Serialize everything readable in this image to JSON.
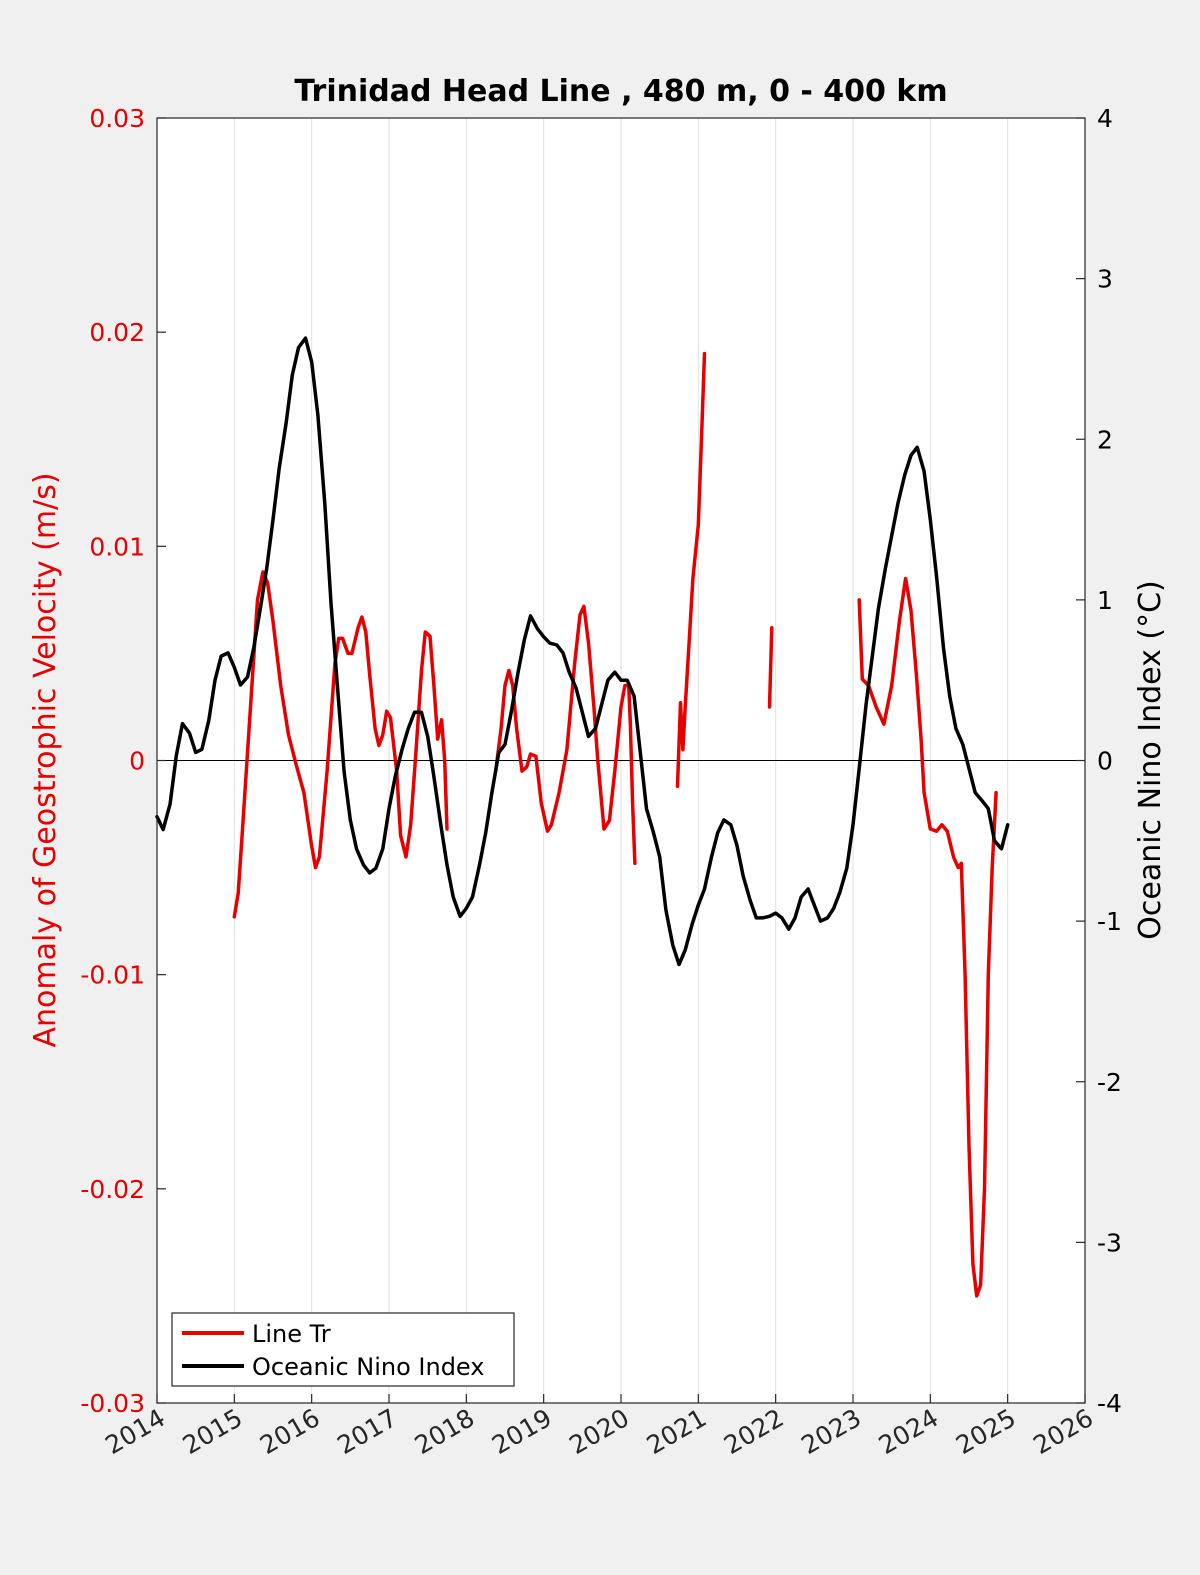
{
  "chart_data": {
    "type": "line",
    "title": "Trinidad Head Line , 480 m, 0 - 400 km",
    "x_axis": {
      "range": [
        2014,
        2026
      ],
      "ticks": [
        "2014",
        "2015",
        "2016",
        "2017",
        "2018",
        "2019",
        "2020",
        "2021",
        "2022",
        "2023",
        "2024",
        "2025",
        "2026"
      ],
      "grid": true
    },
    "y_left": {
      "label": "Anomaly of Geostrophic Velocity (m/s)",
      "range": [
        -0.03,
        0.03
      ],
      "ticks": [
        "-0.03",
        "-0.02",
        "-0.01",
        "0",
        "0.01",
        "0.02",
        "0.03"
      ],
      "color": "#e60000"
    },
    "y_right": {
      "label": "Oceanic Nino Index (°C)",
      "range": [
        -4,
        4
      ],
      "ticks": [
        "-4",
        "-3",
        "-2",
        "-1",
        "0",
        "1",
        "2",
        "3",
        "4"
      ],
      "color": "#000000"
    },
    "zero_line": true,
    "legend": {
      "position": "bottom-left",
      "entries": [
        {
          "label": "Line Tr",
          "color": "#e60000"
        },
        {
          "label": "Oceanic Nino Index",
          "color": "#000000"
        }
      ]
    },
    "series": [
      {
        "name": "Line Tr",
        "axis": "left",
        "color": "#e60000",
        "segments": [
          [
            [
              2015.0,
              -0.0073
            ],
            [
              2015.05,
              -0.0062
            ],
            [
              2015.1,
              -0.0035
            ],
            [
              2015.2,
              0.002
            ],
            [
              2015.3,
              0.0075
            ],
            [
              2015.37,
              0.0088
            ],
            [
              2015.43,
              0.0083
            ],
            [
              2015.5,
              0.0065
            ],
            [
              2015.6,
              0.0035
            ],
            [
              2015.7,
              0.0012
            ],
            [
              2015.8,
              -0.0002
            ],
            [
              2015.9,
              -0.0015
            ],
            [
              2016.0,
              -0.004
            ],
            [
              2016.05,
              -0.005
            ],
            [
              2016.1,
              -0.0045
            ],
            [
              2016.2,
              -0.0005
            ],
            [
              2016.3,
              0.0045
            ],
            [
              2016.35,
              0.0057
            ],
            [
              2016.4,
              0.0057
            ],
            [
              2016.47,
              0.005
            ],
            [
              2016.52,
              0.005
            ],
            [
              2016.6,
              0.0062
            ],
            [
              2016.65,
              0.0067
            ],
            [
              2016.7,
              0.006
            ],
            [
              2016.75,
              0.004
            ],
            [
              2016.82,
              0.0015
            ],
            [
              2016.87,
              0.0007
            ],
            [
              2016.92,
              0.0012
            ],
            [
              2016.97,
              0.0023
            ],
            [
              2017.02,
              0.002
            ],
            [
              2017.1,
              -0.0005
            ],
            [
              2017.15,
              -0.0035
            ],
            [
              2017.22,
              -0.0045
            ],
            [
              2017.28,
              -0.003
            ],
            [
              2017.35,
              0.0005
            ],
            [
              2017.42,
              0.0042
            ],
            [
              2017.47,
              0.006
            ],
            [
              2017.53,
              0.0058
            ],
            [
              2017.58,
              0.0035
            ],
            [
              2017.63,
              0.001
            ],
            [
              2017.68,
              0.0019
            ],
            [
              2017.72,
              0.0
            ],
            [
              2017.75,
              -0.0032
            ]
          ],
          [
            [
              2018.38,
              -0.0005
            ],
            [
              2018.45,
              0.0015
            ],
            [
              2018.5,
              0.0035
            ],
            [
              2018.55,
              0.0042
            ],
            [
              2018.6,
              0.0035
            ],
            [
              2018.65,
              0.0015
            ],
            [
              2018.72,
              -0.0005
            ],
            [
              2018.78,
              -0.0003
            ],
            [
              2018.83,
              0.0003
            ],
            [
              2018.9,
              0.0002
            ],
            [
              2018.97,
              -0.002
            ],
            [
              2019.05,
              -0.0033
            ],
            [
              2019.1,
              -0.003
            ],
            [
              2019.2,
              -0.0015
            ],
            [
              2019.3,
              0.0005
            ],
            [
              2019.4,
              0.0045
            ],
            [
              2019.47,
              0.0068
            ],
            [
              2019.52,
              0.0072
            ],
            [
              2019.58,
              0.0055
            ],
            [
              2019.65,
              0.0025
            ],
            [
              2019.7,
              0.0
            ],
            [
              2019.78,
              -0.0032
            ],
            [
              2019.85,
              -0.0028
            ],
            [
              2019.92,
              -0.0005
            ],
            [
              2020.0,
              0.0025
            ],
            [
              2020.05,
              0.0035
            ],
            [
              2020.1,
              0.0035
            ],
            [
              2020.12,
              0.0018
            ],
            [
              2020.15,
              -0.002
            ],
            [
              2020.18,
              -0.0048
            ]
          ],
          [
            [
              2020.73,
              -0.0012
            ],
            [
              2020.77,
              0.0027
            ],
            [
              2020.8,
              0.0005
            ],
            [
              2020.83,
              0.0025
            ],
            [
              2020.88,
              0.0055
            ],
            [
              2020.93,
              0.0085
            ],
            [
              2021.0,
              0.011
            ],
            [
              2021.03,
              0.014
            ],
            [
              2021.08,
              0.019
            ]
          ],
          [
            [
              2021.92,
              0.0025
            ],
            [
              2021.95,
              0.0062
            ]
          ],
          [
            [
              2023.08,
              0.0075
            ],
            [
              2023.12,
              0.0038
            ],
            [
              2023.2,
              0.0035
            ],
            [
              2023.3,
              0.0025
            ],
            [
              2023.4,
              0.0017
            ],
            [
              2023.5,
              0.0035
            ],
            [
              2023.6,
              0.0065
            ],
            [
              2023.68,
              0.0085
            ],
            [
              2023.75,
              0.007
            ],
            [
              2023.82,
              0.004
            ],
            [
              2023.88,
              0.001
            ],
            [
              2023.92,
              -0.0015
            ],
            [
              2024.0,
              -0.0032
            ],
            [
              2024.08,
              -0.0033
            ],
            [
              2024.15,
              -0.003
            ],
            [
              2024.22,
              -0.0033
            ],
            [
              2024.3,
              -0.0045
            ],
            [
              2024.36,
              -0.005
            ],
            [
              2024.4,
              -0.0048
            ],
            [
              2024.45,
              -0.01
            ],
            [
              2024.5,
              -0.018
            ],
            [
              2024.55,
              -0.0235
            ],
            [
              2024.6,
              -0.025
            ],
            [
              2024.65,
              -0.0245
            ],
            [
              2024.7,
              -0.02
            ],
            [
              2024.75,
              -0.01
            ],
            [
              2024.8,
              -0.005
            ],
            [
              2024.85,
              -0.0015
            ]
          ]
        ]
      },
      {
        "name": "Oceanic Nino Index",
        "axis": "right",
        "color": "#000000",
        "segments": [
          [
            [
              2014.0,
              -0.35
            ],
            [
              2014.08,
              -0.43
            ],
            [
              2014.17,
              -0.27
            ],
            [
              2014.25,
              0.03
            ],
            [
              2014.33,
              0.23
            ],
            [
              2014.42,
              0.17
            ],
            [
              2014.5,
              0.05
            ],
            [
              2014.58,
              0.07
            ],
            [
              2014.67,
              0.25
            ],
            [
              2014.75,
              0.5
            ],
            [
              2014.83,
              0.65
            ],
            [
              2014.92,
              0.67
            ],
            [
              2015.0,
              0.58
            ],
            [
              2015.08,
              0.47
            ],
            [
              2015.17,
              0.52
            ],
            [
              2015.25,
              0.7
            ],
            [
              2015.33,
              0.93
            ],
            [
              2015.42,
              1.2
            ],
            [
              2015.5,
              1.5
            ],
            [
              2015.58,
              1.82
            ],
            [
              2015.67,
              2.1
            ],
            [
              2015.75,
              2.4
            ],
            [
              2015.83,
              2.57
            ],
            [
              2015.92,
              2.63
            ],
            [
              2016.0,
              2.48
            ],
            [
              2016.08,
              2.15
            ],
            [
              2016.17,
              1.6
            ],
            [
              2016.25,
              0.98
            ],
            [
              2016.33,
              0.48
            ],
            [
              2016.42,
              -0.07
            ],
            [
              2016.5,
              -0.37
            ],
            [
              2016.58,
              -0.55
            ],
            [
              2016.67,
              -0.65
            ],
            [
              2016.75,
              -0.7
            ],
            [
              2016.83,
              -0.67
            ],
            [
              2016.92,
              -0.55
            ],
            [
              2017.0,
              -0.3
            ],
            [
              2017.08,
              -0.1
            ],
            [
              2017.17,
              0.07
            ],
            [
              2017.25,
              0.2
            ],
            [
              2017.33,
              0.3
            ],
            [
              2017.42,
              0.3
            ],
            [
              2017.5,
              0.15
            ],
            [
              2017.58,
              -0.1
            ],
            [
              2017.67,
              -0.4
            ],
            [
              2017.75,
              -0.65
            ],
            [
              2017.83,
              -0.85
            ],
            [
              2017.92,
              -0.97
            ],
            [
              2018.0,
              -0.92
            ],
            [
              2018.08,
              -0.85
            ],
            [
              2018.17,
              -0.65
            ],
            [
              2018.25,
              -0.45
            ],
            [
              2018.33,
              -0.2
            ],
            [
              2018.42,
              0.05
            ],
            [
              2018.5,
              0.1
            ],
            [
              2018.58,
              0.3
            ],
            [
              2018.67,
              0.55
            ],
            [
              2018.75,
              0.75
            ],
            [
              2018.83,
              0.9
            ],
            [
              2018.92,
              0.82
            ],
            [
              2019.0,
              0.77
            ],
            [
              2019.08,
              0.73
            ],
            [
              2019.17,
              0.72
            ],
            [
              2019.25,
              0.67
            ],
            [
              2019.33,
              0.55
            ],
            [
              2019.42,
              0.45
            ],
            [
              2019.5,
              0.3
            ],
            [
              2019.58,
              0.15
            ],
            [
              2019.67,
              0.2
            ],
            [
              2019.75,
              0.35
            ],
            [
              2019.83,
              0.5
            ],
            [
              2019.92,
              0.55
            ],
            [
              2020.0,
              0.5
            ],
            [
              2020.08,
              0.5
            ],
            [
              2020.17,
              0.4
            ],
            [
              2020.25,
              0.05
            ],
            [
              2020.33,
              -0.3
            ],
            [
              2020.42,
              -0.45
            ],
            [
              2020.5,
              -0.6
            ],
            [
              2020.58,
              -0.93
            ],
            [
              2020.67,
              -1.15
            ],
            [
              2020.75,
              -1.27
            ],
            [
              2020.83,
              -1.18
            ],
            [
              2020.92,
              -1.02
            ],
            [
              2021.0,
              -0.9
            ],
            [
              2021.08,
              -0.8
            ],
            [
              2021.17,
              -0.6
            ],
            [
              2021.25,
              -0.45
            ],
            [
              2021.33,
              -0.37
            ],
            [
              2021.42,
              -0.4
            ],
            [
              2021.5,
              -0.53
            ],
            [
              2021.58,
              -0.72
            ],
            [
              2021.67,
              -0.87
            ],
            [
              2021.75,
              -0.98
            ],
            [
              2021.83,
              -0.98
            ],
            [
              2021.92,
              -0.97
            ],
            [
              2022.0,
              -0.95
            ],
            [
              2022.08,
              -0.98
            ],
            [
              2022.17,
              -1.05
            ],
            [
              2022.25,
              -0.98
            ],
            [
              2022.33,
              -0.85
            ],
            [
              2022.42,
              -0.8
            ],
            [
              2022.5,
              -0.9
            ],
            [
              2022.58,
              -1.0
            ],
            [
              2022.67,
              -0.98
            ],
            [
              2022.75,
              -0.92
            ],
            [
              2022.83,
              -0.82
            ],
            [
              2022.92,
              -0.67
            ],
            [
              2023.0,
              -0.4
            ],
            [
              2023.08,
              -0.05
            ],
            [
              2023.17,
              0.35
            ],
            [
              2023.25,
              0.65
            ],
            [
              2023.33,
              0.95
            ],
            [
              2023.42,
              1.2
            ],
            [
              2023.5,
              1.4
            ],
            [
              2023.58,
              1.6
            ],
            [
              2023.67,
              1.78
            ],
            [
              2023.75,
              1.9
            ],
            [
              2023.83,
              1.95
            ],
            [
              2023.92,
              1.8
            ],
            [
              2024.0,
              1.5
            ],
            [
              2024.08,
              1.15
            ],
            [
              2024.17,
              0.7
            ],
            [
              2024.25,
              0.4
            ],
            [
              2024.33,
              0.2
            ],
            [
              2024.42,
              0.1
            ],
            [
              2024.5,
              -0.05
            ],
            [
              2024.58,
              -0.2
            ],
            [
              2024.67,
              -0.25
            ],
            [
              2024.75,
              -0.3
            ],
            [
              2024.83,
              -0.5
            ],
            [
              2024.92,
              -0.55
            ],
            [
              2025.0,
              -0.4
            ]
          ]
        ]
      }
    ]
  }
}
